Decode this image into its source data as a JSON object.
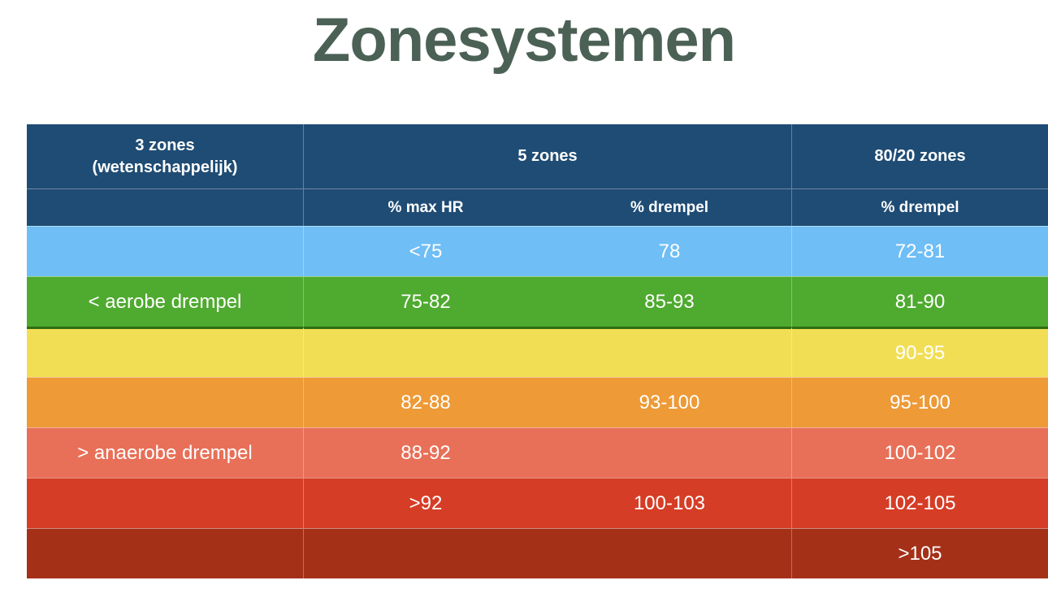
{
  "title": "Zonesystemen",
  "theme": {
    "background": "#FFFFFF",
    "title_color": "#4C6156",
    "header_bg": "#1F4C74",
    "header_text_color": "#FFFFFF",
    "cell_text_color": "#FFFFFF",
    "aerobic_divider_color": "#2F6D12"
  },
  "chart_data": {
    "type": "table",
    "title": "Zonesystemen",
    "header": {
      "col_3zones_line1": "3 zones",
      "col_3zones_line2": "(wetenschappelijk)",
      "col_5zones": "5 zones",
      "col_8020": "80/20 zones",
      "sub_3zones": "",
      "sub_max_hr": "% max HR",
      "sub_drempel_5zones": "% drempel",
      "sub_drempel_8020": "% drempel"
    },
    "columns": [
      "3 zones (wetenschappelijk)",
      "5 zones - % max HR",
      "5 zones - % drempel",
      "80/20 zones - % drempel"
    ],
    "rows": [
      {
        "zone_label": "",
        "pct_max_hr": "<75",
        "pct_drempel": "78",
        "pct_drempel_8020": "72-81",
        "color": "#6FBEF5",
        "color_name": "light-blue"
      },
      {
        "zone_label": "< aerobe drempel",
        "pct_max_hr": "75-82",
        "pct_drempel": "85-93",
        "pct_drempel_8020": "81-90",
        "color": "#4FAA30",
        "color_name": "green"
      },
      {
        "zone_label": "",
        "pct_max_hr": "",
        "pct_drempel": "",
        "pct_drempel_8020": "90-95",
        "color": "#F2DE55",
        "color_name": "yellow"
      },
      {
        "zone_label": "",
        "pct_max_hr": "82-88",
        "pct_drempel": "93-100",
        "pct_drempel_8020": "95-100",
        "color": "#ED9A37",
        "color_name": "orange"
      },
      {
        "zone_label": "> anaerobe drempel",
        "pct_max_hr": "88-92",
        "pct_drempel": "",
        "pct_drempel_8020": "100-102",
        "color": "#E87058",
        "color_name": "salmon"
      },
      {
        "zone_label": "",
        "pct_max_hr": ">92",
        "pct_drempel": "100-103",
        "pct_drempel_8020": "102-105",
        "color": "#D63D26",
        "color_name": "red"
      },
      {
        "zone_label": "",
        "pct_max_hr": "",
        "pct_drempel": "",
        "pct_drempel_8020": ">105",
        "color": "#A53018",
        "color_name": "dark-red"
      }
    ]
  }
}
